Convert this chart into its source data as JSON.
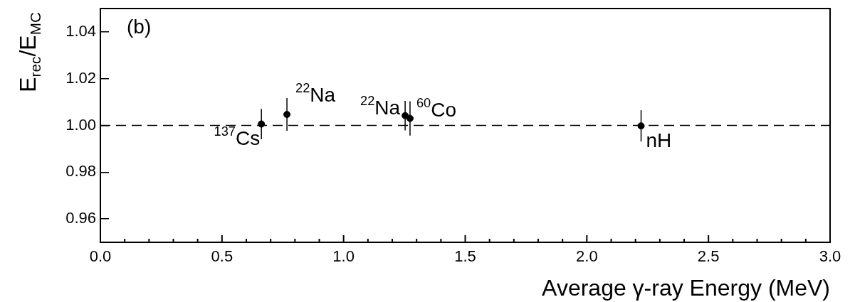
{
  "chart_data": {
    "type": "scatter",
    "xlabel": "Average γ-ray Energy (MeV)",
    "ylabel": "E$_{rec}$/E$_{MC}$",
    "x": [
      0.662,
      0.767,
      1.253,
      1.273,
      2.223
    ],
    "series": [
      {
        "color": "#000000",
        "values": [
          1.0006,
          1.0047,
          1.0042,
          1.003,
          0.9998
        ],
        "errors": [
          0.0065,
          0.007,
          0.0063,
          0.0073,
          0.0067
        ]
      }
    ],
    "xlim": [
      0,
      3
    ],
    "xticks": [
      {
        "value": 0,
        "label": "0.0"
      },
      {
        "value": 0.5,
        "label": "0.5"
      },
      {
        "value": 1,
        "label": "1.0"
      },
      {
        "value": 1.5,
        "label": "1.5"
      },
      {
        "value": 2,
        "label": "2.0"
      },
      {
        "value": 2.5,
        "label": "2.5"
      },
      {
        "value": 3,
        "label": "3.0"
      }
    ],
    "ylim": [
      0.95,
      1.05
    ],
    "yticks": [
      {
        "value": 0.96,
        "label": "0.96"
      },
      {
        "value": 0.98,
        "label": "0.98"
      },
      {
        "value": 1,
        "label": "1.00"
      },
      {
        "value": 1.02,
        "label": "1.02"
      },
      {
        "value": 1.04,
        "label": "1.04"
      }
    ],
    "ref_lines": [
      {
        "axis": "y",
        "value": 1.0,
        "line_style": "dashed",
        "color": "#000000"
      }
    ],
    "annotations": [
      "(b)",
      {
        "text": "$^{137}$Cs",
        "x": 0.662,
        "y": 1.0006
      },
      {
        "text": "$^{22}$Na",
        "x": 0.767,
        "y": 1.0047
      },
      {
        "text": "$^{22}$Na",
        "x": 1.253,
        "y": 1.0042
      },
      {
        "text": "$^{60}$Co",
        "x": 1.273,
        "y": 1.003
      },
      {
        "text": "nH",
        "x": 2.223,
        "y": 0.9998
      }
    ],
    "grid": false,
    "legend": false,
    "marker": "circle"
  }
}
